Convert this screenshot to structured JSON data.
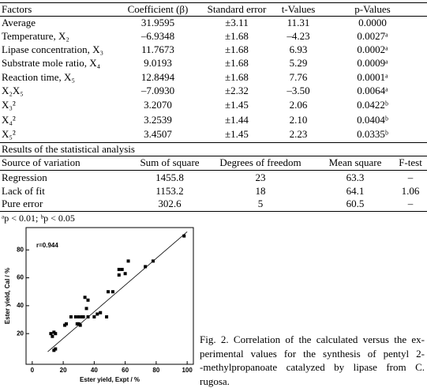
{
  "table": {
    "header": [
      "Factors",
      "Coefficient (β)",
      "Standard error",
      "t-Values",
      "p-Values"
    ],
    "rows": [
      [
        "Average",
        "31.9595",
        "±3.11",
        "11.31",
        "0.0000"
      ],
      [
        "Temperature, X₂",
        "–6.9348",
        "±1.68",
        "–4.23",
        "0.0027ᵃ"
      ],
      [
        "Lipase concentration, X₃",
        "11.7673",
        "±1.68",
        "6.93",
        "0.0002ᵃ"
      ],
      [
        "Substrate mole ratio, X₄",
        "9.0193",
        "±1.68",
        "5.29",
        "0.0009ᵃ"
      ],
      [
        "Reaction time, X₅",
        "12.8494",
        "±1.68",
        "7.76",
        "0.0001ᵃ"
      ],
      [
        "X₂X₅",
        "–7.0930",
        "±2.32",
        "–3.50",
        "0.0064ᵃ"
      ],
      [
        "X₃²",
        "3.2070",
        "±1.45",
        "2.06",
        "0.0422ᵇ"
      ],
      [
        "X₄²",
        "3.2539",
        "±1.44",
        "2.10",
        "0.0404ᵇ"
      ],
      [
        "X₅²",
        "3.4507",
        "±1.45",
        "2.23",
        "0.0335ᵇ"
      ]
    ]
  },
  "results": {
    "title": "Results of the statistical analysis",
    "header": [
      "Source of variation",
      "Sum of square",
      "Degrees of freedom",
      "Mean square",
      "F-test"
    ],
    "rows": [
      [
        "Regression",
        "1455.8",
        "23",
        "63.3",
        "–"
      ],
      [
        "Lack of fit",
        "1153.2",
        "18",
        "64.1",
        "1.06"
      ],
      [
        "Pure error",
        "302.6",
        "5",
        "60.5",
        "–"
      ]
    ]
  },
  "footnote": "ᵃp < 0.01; ᵇp < 0.05",
  "caption": [
    "Fig. 2. Correlation of the calculated versus the ex-",
    "perimental values for the synthesis of pentyl 2-",
    "-methylpropanoate catalyzed by lipase from C.",
    "rugosa."
  ],
  "chart_data": {
    "type": "scatter",
    "x_label": "Ester yield, Expt / %",
    "y_label": "Ester yield, Cal / %",
    "annotation": "r=0.944",
    "xlim": [
      -4,
      104
    ],
    "ylim": [
      -2,
      96
    ],
    "xticks": [
      0,
      20,
      40,
      60,
      80,
      100
    ],
    "yticks": [
      20,
      40,
      60,
      80
    ],
    "color": "#000000",
    "x": [
      12,
      13,
      14,
      15,
      14,
      15,
      21,
      22,
      25,
      28,
      29,
      30,
      30,
      31,
      32,
      33,
      34,
      35,
      36,
      36,
      40,
      42,
      44,
      48,
      49,
      52,
      56,
      56,
      58,
      60,
      62,
      73,
      78,
      98
    ],
    "values": [
      20,
      18,
      21,
      20,
      8,
      9,
      26,
      27,
      32,
      32,
      27,
      27,
      32,
      26,
      32,
      32,
      46,
      38,
      44,
      32,
      32,
      34,
      35,
      32,
      50,
      50,
      62,
      66,
      66,
      63,
      72,
      68,
      72,
      90
    ],
    "fit_line": {
      "x": [
        10,
        100
      ],
      "y": [
        7,
        93
      ]
    }
  }
}
